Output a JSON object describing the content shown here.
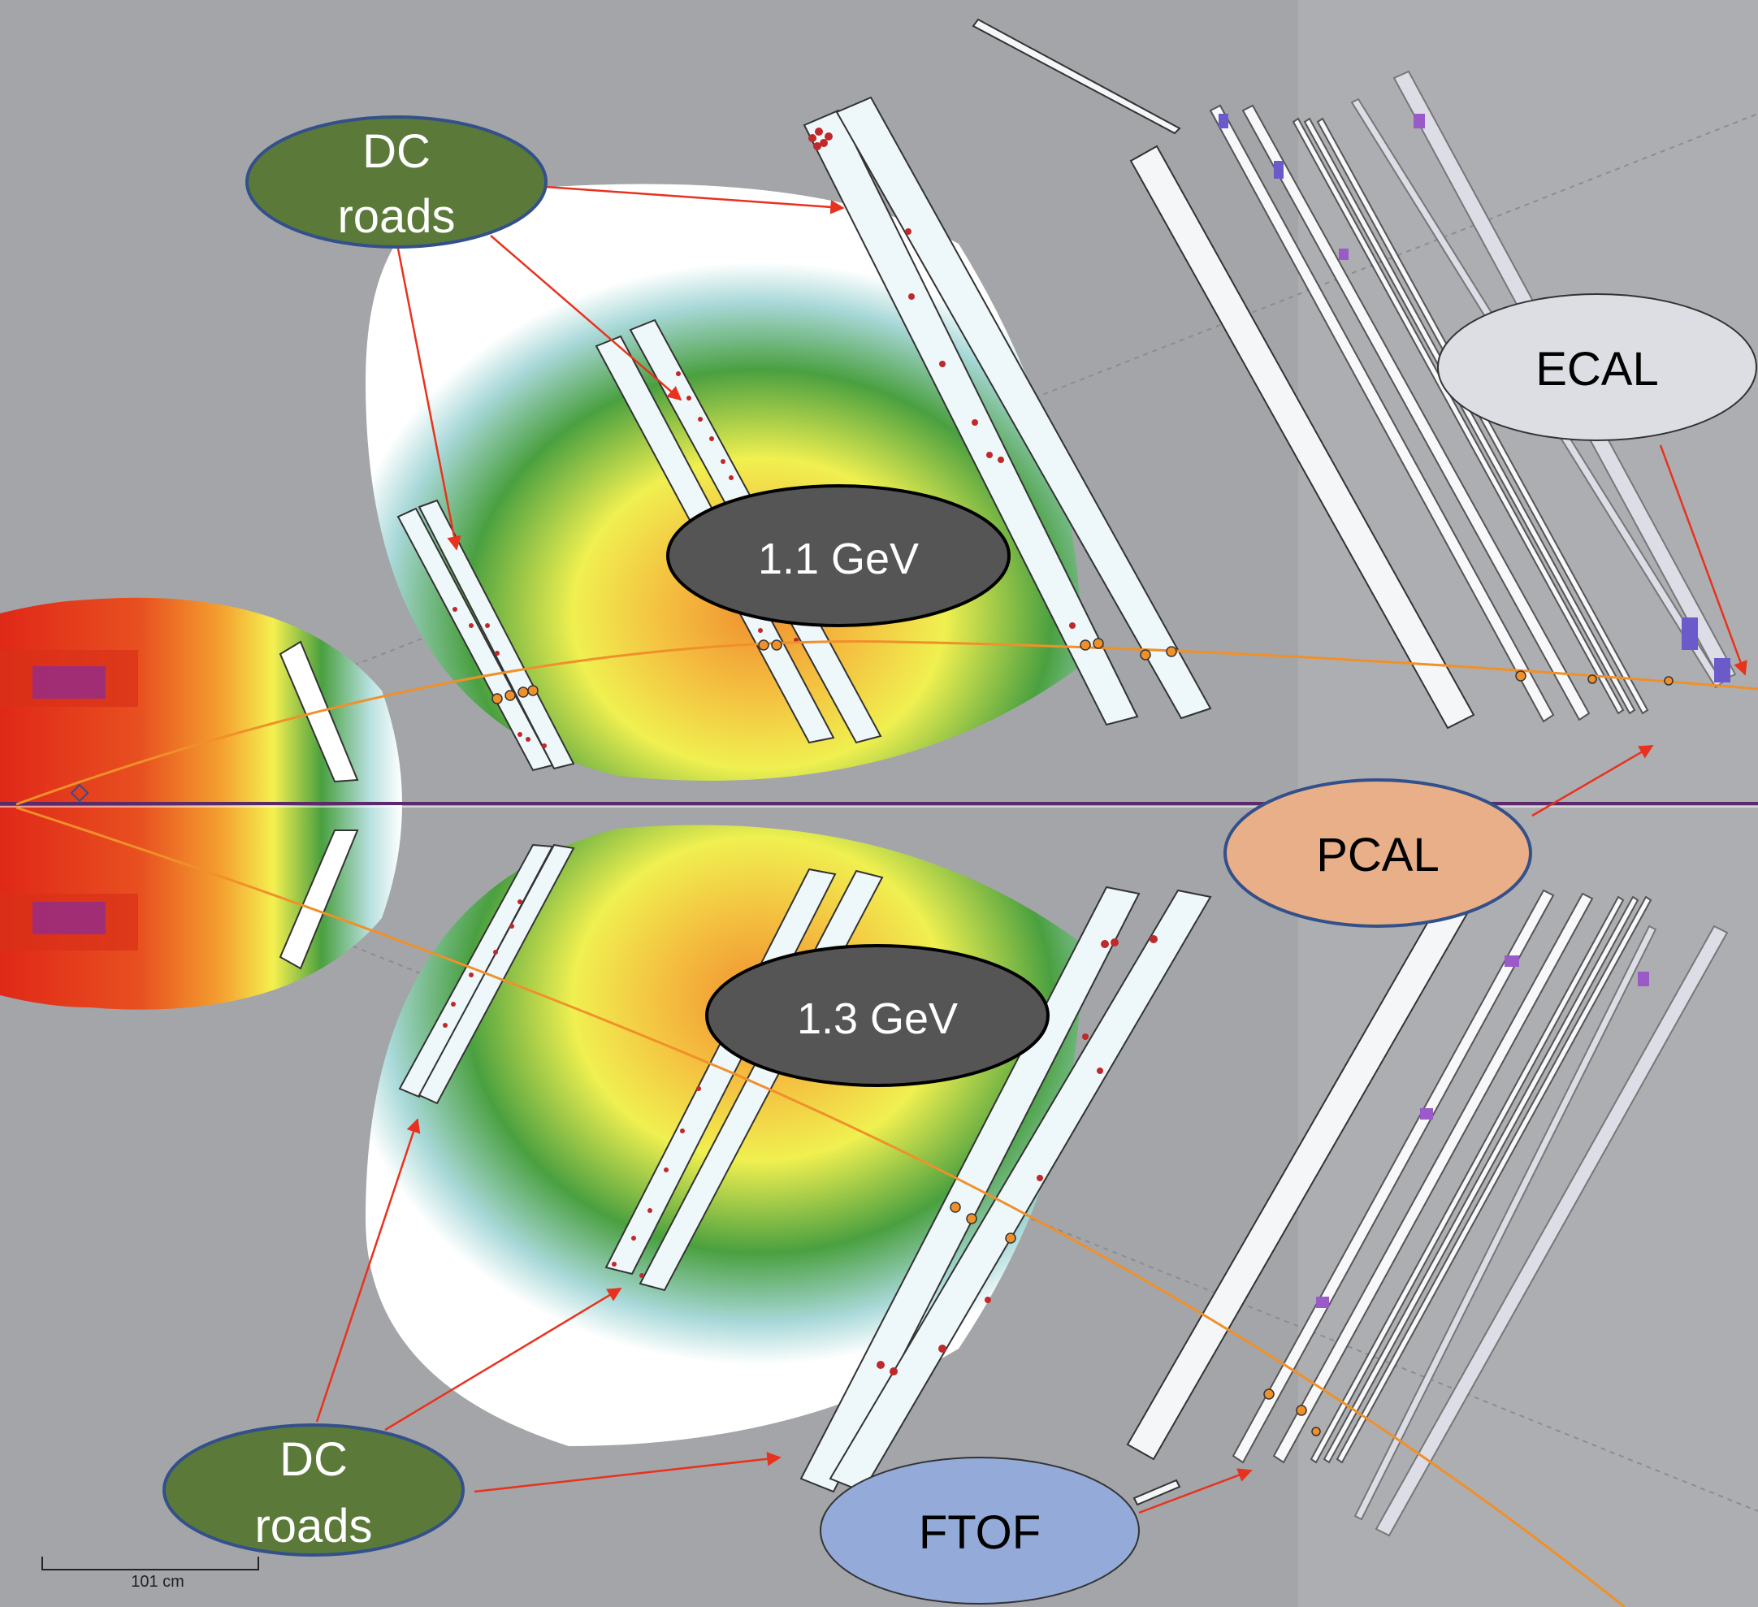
{
  "callouts": {
    "dc_top": {
      "line1": "DC",
      "line2": "roads",
      "fill": "#5b7a3a",
      "stroke": "#33508a",
      "text_color": "#ffffff"
    },
    "dc_bottom": {
      "line1": "DC",
      "line2": "roads",
      "fill": "#5b7a3a",
      "stroke": "#33508a",
      "text_color": "#ffffff"
    },
    "energy_top": {
      "label": "1.1 GeV",
      "fill": "#555555",
      "stroke": "#000000",
      "text_color": "#ffffff"
    },
    "energy_bottom": {
      "label": "1.3 GeV",
      "fill": "#555555",
      "stroke": "#000000",
      "text_color": "#ffffff"
    },
    "ecal": {
      "label": "ECAL",
      "fill": "#dcdee4",
      "stroke": "#333333",
      "text_color": "#000000"
    },
    "pcal": {
      "label": "PCAL",
      "fill": "#e8af88",
      "stroke": "#33508a",
      "text_color": "#000000"
    },
    "ftof": {
      "label": "FTOF",
      "fill": "#94aad8",
      "stroke": "#333333",
      "text_color": "#000000"
    }
  },
  "scale_bar": {
    "label": "101 cm"
  },
  "colors": {
    "background": "#a3a5a8",
    "arrow": "#e8321e",
    "track": "#f0902a",
    "hit": "#c0282a",
    "beamline": "#5a2a6a",
    "field_colormap": [
      "#ffffff",
      "#cce8ee",
      "#4aa040",
      "#f4f050",
      "#f09030",
      "#e03020",
      "#6a2aa0"
    ]
  }
}
